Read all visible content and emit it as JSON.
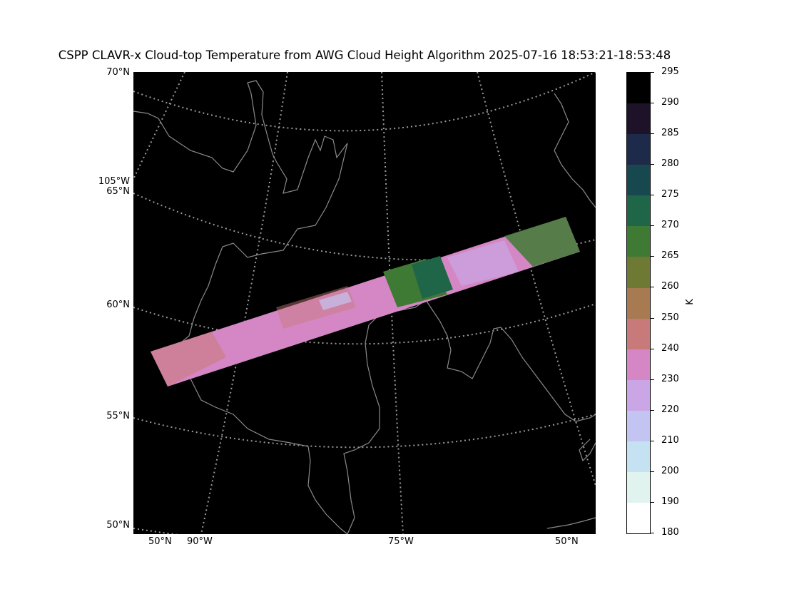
{
  "title": "CSPP CLAVR-x Cloud-top Temperature from AWG Cloud Height Algorithm 2025-07-16 18:53:21-18:53:48",
  "left_labels": [
    "70°N",
    "105°W",
    "65°N",
    "60°N",
    "55°N",
    "50°N"
  ],
  "bottom_labels": [
    "50°N",
    "90°W",
    "75°W",
    "50°N"
  ],
  "colorbar": {
    "units": "K",
    "ticks": [
      "295",
      "290",
      "285",
      "280",
      "275",
      "270",
      "265",
      "260",
      "250",
      "240",
      "230",
      "220",
      "210",
      "200",
      "190",
      "180"
    ],
    "colors": [
      "#ffffff",
      "#e0f3ef",
      "#c4e2f2",
      "#c4c4f2",
      "#caa6e6",
      "#d487c4",
      "#c87a7a",
      "#a77a52",
      "#6e7a33",
      "#3f7a35",
      "#1f6648",
      "#17474f",
      "#1e2a4a",
      "#1d1228",
      "#000000"
    ]
  },
  "colors": {
    "background": "#000000",
    "coastline": "#8a8a8a",
    "graticule": "#9a9a9a",
    "swath_main": "#d487c4",
    "swath_warm": "#3f7a35"
  }
}
